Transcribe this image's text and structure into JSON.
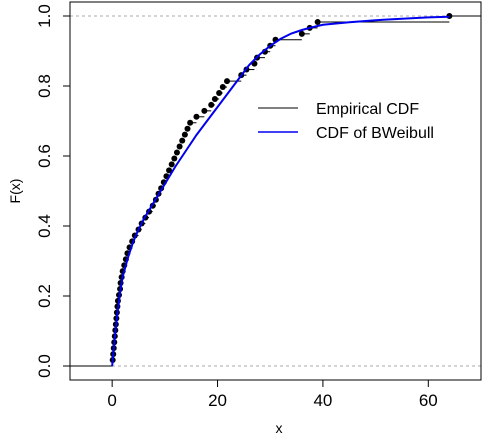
{
  "chart_data": {
    "type": "line",
    "title": "",
    "xlabel": "x",
    "ylabel": "F(x)",
    "xlim": [
      -8,
      70
    ],
    "ylim": [
      -0.04,
      1.04
    ],
    "x_ticks": [
      0,
      20,
      40,
      60
    ],
    "y_ticks": [
      0.0,
      0.2,
      0.4,
      0.6,
      0.8,
      1.0
    ],
    "x_tick_labels": [
      "0",
      "20",
      "40",
      "60"
    ],
    "y_tick_labels": [
      "0.0",
      "0.2",
      "0.4",
      "0.6",
      "0.8",
      "1.0"
    ],
    "reference_lines_y": [
      0,
      1
    ],
    "grid": false,
    "legend_position": "right",
    "series": [
      {
        "name": "Empirical CDF",
        "kind": "step",
        "color": "#000000",
        "x": [
          0.1,
          0.2,
          0.3,
          0.4,
          0.5,
          0.6,
          0.7,
          0.8,
          0.9,
          1.0,
          1.1,
          1.3,
          1.5,
          1.6,
          1.8,
          2.0,
          2.3,
          2.6,
          2.9,
          3.3,
          3.8,
          4.3,
          5.0,
          5.6,
          6.3,
          7.0,
          7.7,
          8.3,
          8.8,
          9.3,
          9.8,
          10.3,
          10.8,
          11.3,
          11.8,
          12.3,
          12.8,
          13.3,
          13.8,
          14.3,
          14.8,
          16.0,
          17.5,
          18.8,
          19.5,
          20.3,
          21.0,
          21.8,
          24.5,
          25.5,
          27.0,
          27.5,
          29.0,
          30.0,
          31.0,
          36.0,
          37.5,
          39.0,
          64.0
        ],
        "y": [
          0.017,
          0.034,
          0.051,
          0.068,
          0.085,
          0.102,
          0.119,
          0.136,
          0.153,
          0.17,
          0.186,
          0.203,
          0.22,
          0.237,
          0.254,
          0.271,
          0.288,
          0.305,
          0.322,
          0.339,
          0.356,
          0.373,
          0.39,
          0.407,
          0.424,
          0.441,
          0.458,
          0.475,
          0.492,
          0.508,
          0.525,
          0.542,
          0.559,
          0.576,
          0.593,
          0.61,
          0.627,
          0.644,
          0.661,
          0.678,
          0.695,
          0.712,
          0.729,
          0.746,
          0.763,
          0.78,
          0.797,
          0.814,
          0.831,
          0.847,
          0.864,
          0.881,
          0.898,
          0.915,
          0.932,
          0.949,
          0.966,
          0.983,
          1.0
        ]
      },
      {
        "name": "CDF of BWeibull",
        "kind": "curve",
        "color": "#0000ee",
        "x": [
          0,
          0.5,
          1.0,
          1.5,
          2.0,
          3.0,
          4.0,
          5.0,
          6.0,
          8.0,
          10.0,
          12.0,
          14.0,
          16.0,
          18.0,
          20.0,
          22.0,
          24.0,
          26.0,
          28.0,
          30.0,
          32.0,
          34.0,
          36.0,
          38.0,
          40.0,
          45.0,
          50.0,
          55.0,
          60.0,
          64.0
        ],
        "y": [
          0.0,
          0.08,
          0.15,
          0.21,
          0.255,
          0.31,
          0.355,
          0.39,
          0.42,
          0.47,
          0.52,
          0.57,
          0.615,
          0.66,
          0.7,
          0.74,
          0.78,
          0.82,
          0.86,
          0.89,
          0.915,
          0.935,
          0.95,
          0.96,
          0.968,
          0.975,
          0.982,
          0.988,
          0.992,
          0.996,
          0.998
        ]
      }
    ]
  }
}
